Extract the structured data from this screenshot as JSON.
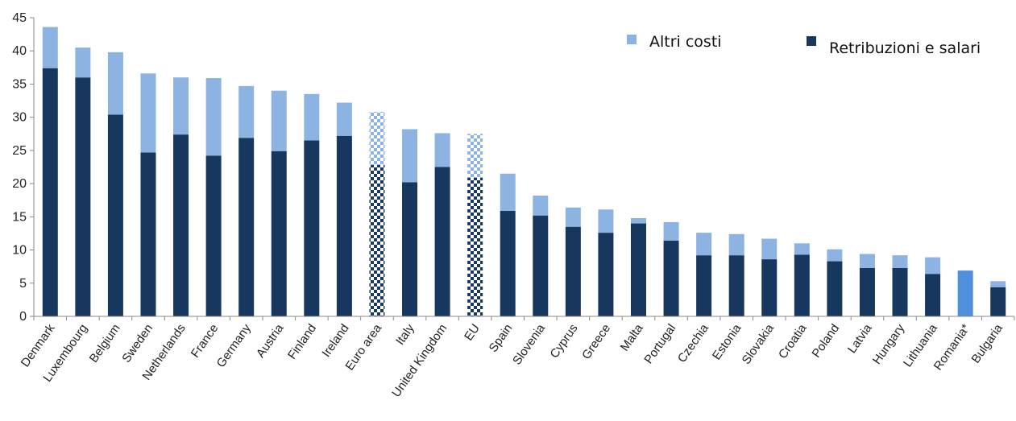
{
  "chart_data": {
    "type": "bar",
    "stacked": true,
    "title": "",
    "xlabel": "",
    "ylabel": "",
    "ylim": [
      0,
      45
    ],
    "yticks": [
      0,
      5,
      10,
      15,
      20,
      25,
      30,
      35,
      40,
      45
    ],
    "grid": false,
    "legend_position": "top-right",
    "categories": [
      "Denmark",
      "Luxembourg",
      "Belgium",
      "Sweden",
      "Netherlands",
      "France",
      "Germany",
      "Austria",
      "Finland",
      "Ireland",
      "Euro area",
      "Italy",
      "United Kingdom",
      "EU",
      "Spain",
      "Slovenia",
      "Cyprus",
      "Greece",
      "Malta",
      "Portugal",
      "Czechia",
      "Estonia",
      "Slovakia",
      "Croatia",
      "Poland",
      "Latvia",
      "Hungary",
      "Lithuania",
      "Romania*",
      "Bulgaria"
    ],
    "series": [
      {
        "name": "Retribuzioni e salari",
        "color": "#17375e",
        "values": [
          37.4,
          36.0,
          30.4,
          24.7,
          27.4,
          24.2,
          26.9,
          24.9,
          26.5,
          27.2,
          22.8,
          20.2,
          22.5,
          20.9,
          15.9,
          15.2,
          13.5,
          12.6,
          14.0,
          11.4,
          9.2,
          9.2,
          8.6,
          9.3,
          8.3,
          7.3,
          7.3,
          6.4,
          0,
          4.4
        ]
      },
      {
        "name": "Altri costi",
        "color": "#8db3e2",
        "values": [
          6.2,
          4.5,
          9.4,
          11.9,
          8.6,
          11.7,
          7.8,
          9.1,
          7.0,
          5.0,
          8.0,
          8.0,
          5.1,
          6.6,
          5.6,
          3.0,
          2.9,
          3.5,
          0.8,
          2.8,
          3.4,
          3.2,
          3.1,
          1.7,
          1.8,
          2.1,
          1.9,
          2.5,
          0,
          0.9
        ]
      }
    ],
    "aggregate_categories": [
      "Euro area",
      "EU"
    ],
    "total_only": [
      {
        "category": "Romania*",
        "value": 6.9,
        "color": "#4f8fdc"
      }
    ]
  }
}
